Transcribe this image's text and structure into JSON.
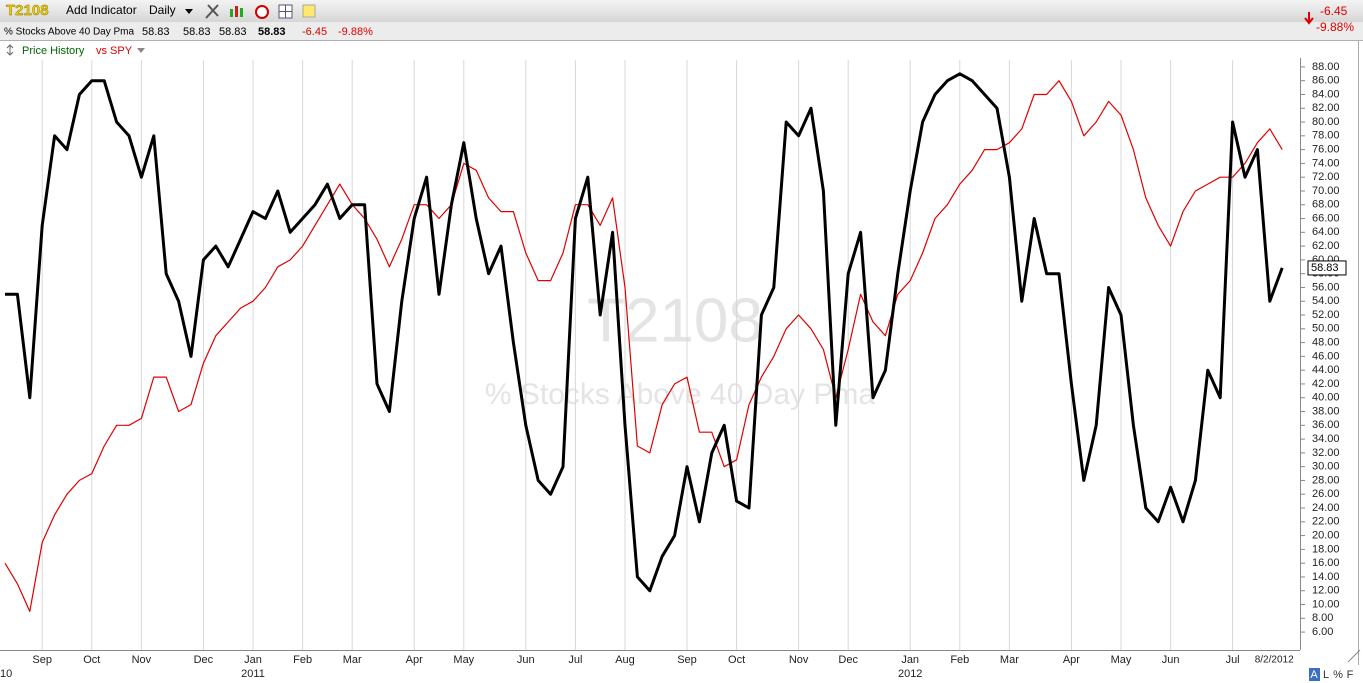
{
  "header": {
    "symbol": "T2108",
    "add_indicator": "Add Indicator",
    "period": "Daily",
    "change": "-6.45",
    "change_pct": "-9.88%",
    "name": "% Stocks Above 40 Day Pma",
    "quotes": [
      "58.83",
      "58.83",
      "58.83",
      "58.83"
    ]
  },
  "legend": {
    "price": "Price History",
    "compare": "vs SPY"
  },
  "corner_buttons": [
    "A",
    "L",
    "%",
    "F"
  ],
  "chart_data": {
    "type": "line",
    "categories": [
      null,
      null,
      null,
      "Sep",
      null,
      null,
      null,
      "Oct",
      null,
      null,
      null,
      "Nov",
      null,
      null,
      null,
      null,
      "Dec",
      null,
      null,
      null,
      "Jan",
      null,
      null,
      null,
      "Feb",
      null,
      null,
      null,
      "Mar",
      null,
      null,
      null,
      null,
      "Apr",
      null,
      null,
      null,
      "May",
      null,
      null,
      null,
      null,
      "Jun",
      null,
      null,
      null,
      "Jul",
      null,
      null,
      null,
      "Aug",
      null,
      null,
      null,
      null,
      "Sep",
      null,
      null,
      null,
      "Oct",
      null,
      null,
      null,
      null,
      "Nov",
      null,
      null,
      null,
      "Dec",
      null,
      null,
      null,
      null,
      "Jan",
      null,
      null,
      null,
      "Feb",
      null,
      null,
      null,
      "Mar",
      null,
      null,
      null,
      null,
      "Apr",
      null,
      null,
      null,
      "May",
      null,
      null,
      null,
      "Jun",
      null,
      null,
      null,
      null,
      "Jul",
      null,
      null,
      null,
      "8/2/2012"
    ],
    "year_labels": [
      "10",
      "2011",
      "2012"
    ],
    "series": [
      {
        "color": "#000000",
        "values": [
          55,
          55,
          40,
          65,
          78,
          76,
          84,
          86,
          86,
          80,
          78,
          72,
          78,
          58,
          54,
          46,
          60,
          62,
          59,
          63,
          67,
          66,
          70,
          64,
          66,
          68,
          71,
          66,
          68,
          68,
          42,
          38,
          54,
          66,
          72,
          55,
          68,
          77,
          66,
          58,
          62,
          48,
          36,
          28,
          26,
          30,
          66,
          72,
          52,
          64,
          36,
          14,
          12,
          17,
          20,
          30,
          22,
          32,
          36,
          25,
          24,
          52,
          56,
          80,
          78,
          82,
          70,
          36,
          58,
          64,
          40,
          44,
          58,
          70,
          80,
          84,
          86,
          87,
          86,
          84,
          82,
          72,
          54,
          66,
          58,
          58,
          42,
          28,
          36,
          56,
          52,
          36,
          24,
          22,
          27,
          22,
          28,
          44,
          40,
          80,
          72,
          76,
          54,
          58.83
        ]
      },
      {
        "color": "#e00000",
        "values": [
          16,
          13,
          9,
          19,
          23,
          26,
          28,
          29,
          33,
          36,
          36,
          37,
          43,
          43,
          38,
          39,
          45,
          49,
          51,
          53,
          54,
          56,
          59,
          60,
          62,
          65,
          68,
          71,
          68,
          66,
          63,
          59,
          63,
          68,
          68,
          66,
          68,
          74,
          73,
          69,
          67,
          67,
          61,
          57,
          57,
          61,
          68,
          68,
          65,
          69,
          56,
          33,
          32,
          39,
          42,
          43,
          35,
          35,
          30,
          31,
          39,
          43,
          46,
          50,
          52,
          50,
          47,
          40,
          47,
          55,
          51,
          49,
          55,
          57,
          61,
          66,
          68,
          71,
          73,
          76,
          76,
          77,
          79,
          84,
          84,
          86,
          83,
          78,
          80,
          83,
          81,
          76,
          69,
          65,
          62,
          67,
          70,
          71,
          72,
          72,
          74,
          77,
          79,
          76
        ]
      }
    ],
    "ylim": [
      3.4,
      89
    ],
    "yticks": [
      {
        "value": 6,
        "label": "6.00"
      },
      {
        "value": 8,
        "label": "8.00"
      },
      {
        "value": 10,
        "label": "10.00"
      },
      {
        "value": 12,
        "label": "12.00"
      },
      {
        "value": 14,
        "label": "14.00"
      },
      {
        "value": 16,
        "label": "16.00"
      },
      {
        "value": 18,
        "label": "18.00"
      },
      {
        "value": 20,
        "label": "20.00"
      },
      {
        "value": 22,
        "label": "22.00"
      },
      {
        "value": 24,
        "label": "24.00"
      },
      {
        "value": 26,
        "label": "26.00"
      },
      {
        "value": 28,
        "label": "28.00"
      },
      {
        "value": 30,
        "label": "30.00"
      },
      {
        "value": 32,
        "label": "32.00"
      },
      {
        "value": 34,
        "label": "34.00"
      },
      {
        "value": 36,
        "label": "36.00"
      },
      {
        "value": 38,
        "label": "38.00"
      },
      {
        "value": 40,
        "label": "40.00"
      },
      {
        "value": 42,
        "label": "42.00"
      },
      {
        "value": 44,
        "label": "44.00"
      },
      {
        "value": 46,
        "label": "46.00"
      },
      {
        "value": 48,
        "label": "48.00"
      },
      {
        "value": 50,
        "label": "50.00"
      },
      {
        "value": 52,
        "label": "52.00"
      },
      {
        "value": 54,
        "label": "54.00"
      },
      {
        "value": 56,
        "label": "56.00"
      },
      {
        "value": 58,
        "label": "58.00"
      },
      {
        "value": 60,
        "label": "60.00"
      },
      {
        "value": 62,
        "label": "62.00"
      },
      {
        "value": 64,
        "label": "64.00"
      },
      {
        "value": 66,
        "label": "66.00"
      },
      {
        "value": 68,
        "label": "68.00"
      },
      {
        "value": 70,
        "label": "70.00"
      },
      {
        "value": 72,
        "label": "72.00"
      },
      {
        "value": 74,
        "label": "74.00"
      },
      {
        "value": 76,
        "label": "76.00"
      },
      {
        "value": 78,
        "label": "78.00"
      },
      {
        "value": 80,
        "label": "80.00"
      },
      {
        "value": 82,
        "label": "82.00"
      },
      {
        "value": 84,
        "label": "84.00"
      },
      {
        "value": 86,
        "label": "86.00"
      },
      {
        "value": 88,
        "label": "88.00"
      }
    ],
    "xgrid": true
  }
}
